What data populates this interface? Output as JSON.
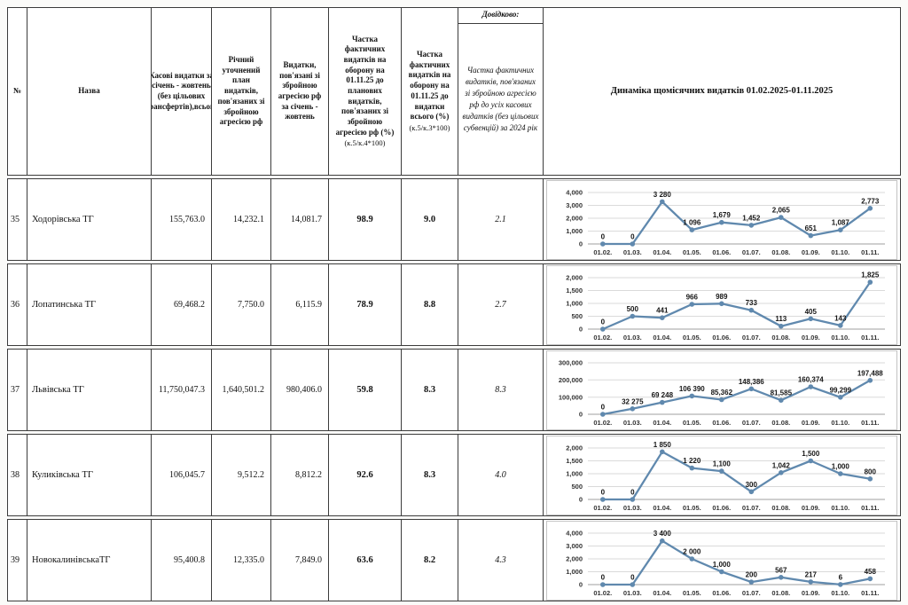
{
  "colors": {
    "line": "#6089ae",
    "grid": "#dadada",
    "zero_axis": "#9f9f9f",
    "border": "#3c3c3c"
  },
  "table": {
    "columns": [
      {
        "label": "№"
      },
      {
        "label": "Назва"
      },
      {
        "label": "Касові видатки за січень - жовтень (без цільових трансфертів),всього"
      },
      {
        "label": "Річний уточнений план видатків, пов'язаних зі збройною агресією рф"
      },
      {
        "label": "Видатки, пов'язані зі збройною агресією рф за січень - жовтень"
      },
      {
        "label": "Частка фактичних видатків на оборону на 01.11.25 до планових видатків, пов'язаних зі збройною агресією рф (%)",
        "formula": "(к.5/к.4*100)"
      },
      {
        "label": "Частка фактичних видатків на оборону на 01.11.25 до видатки всього (%)",
        "formula": "(к.5/к.3*100)"
      },
      {
        "note": "Довідково:",
        "label": "Частка фактичних видатків, пов'язаних зі збройною агресією рф до усіх касових видатків (без цільових субвенцій) за 2024 рік"
      },
      {
        "label": "Динаміка щомісячних видатків 01.02.2025-01.11.2025"
      }
    ],
    "rows": [
      {
        "num": "35",
        "name": "Ходорівська ТГ",
        "cash": "155,763.0",
        "plan": "14,232.1",
        "spent": "14,081.7",
        "share_plan": "98.9",
        "share_total": "9.0",
        "ref": "2.1",
        "chart": {
          "type": "line",
          "x": [
            "01.02.",
            "01.03.",
            "01.04.",
            "01.05.",
            "01.06.",
            "01.07.",
            "01.08.",
            "01.09.",
            "01.10.",
            "01.11."
          ],
          "values": [
            0,
            0,
            3280,
            1096,
            1679,
            1452,
            2065,
            651,
            1087,
            2773
          ],
          "labels": [
            "0",
            "0",
            "3 280",
            "1 096",
            "1,679",
            "1,452",
            "2,065",
            "651",
            "1,087",
            "2,773"
          ],
          "y_max": 4000,
          "y_ticks": [
            0,
            1000,
            2000,
            3000,
            4000
          ],
          "y_tick_labels": [
            "0",
            "1,000",
            "2,000",
            "3,000",
            "4,000"
          ]
        }
      },
      {
        "num": "36",
        "name": "Лопатинська ТГ",
        "cash": "69,468.2",
        "plan": "7,750.0",
        "spent": "6,115.9",
        "share_plan": "78.9",
        "share_total": "8.8",
        "ref": "2.7",
        "chart": {
          "type": "line",
          "x": [
            "01.02.",
            "01.03.",
            "01.04.",
            "01.05.",
            "01.06.",
            "01.07.",
            "01.08.",
            "01.09.",
            "01.10.",
            "01.11."
          ],
          "values": [
            0,
            500,
            441,
            966,
            989,
            733,
            113,
            405,
            143,
            1825
          ],
          "labels": [
            "0",
            "500",
            "441",
            "966",
            "989",
            "733",
            "113",
            "405",
            "143",
            "1,825"
          ],
          "y_max": 2000,
          "y_ticks": [
            0,
            500,
            1000,
            1500,
            2000
          ],
          "y_tick_labels": [
            "0",
            "500",
            "1,000",
            "1,500",
            "2,000"
          ]
        }
      },
      {
        "num": "37",
        "name": "Львівська ТГ",
        "cash": "11,750,047.3",
        "plan": "1,640,501.2",
        "spent": "980,406.0",
        "share_plan": "59.8",
        "share_total": "8.3",
        "ref": "8.3",
        "chart": {
          "type": "line",
          "x": [
            "01.02.",
            "01.03.",
            "01.04.",
            "01.05.",
            "01.06.",
            "01.07.",
            "01.08.",
            "01.09.",
            "01.10.",
            "01.11."
          ],
          "values": [
            0,
            32275,
            69248,
            106390,
            85362,
            148386,
            81585,
            160374,
            99299,
            197488
          ],
          "labels": [
            "0",
            "32 275",
            "69 248",
            "106 390",
            "85,362",
            "148,386",
            "81,585",
            "160,374",
            "99,299",
            "197,488"
          ],
          "y_max": 300000,
          "y_ticks": [
            0,
            100000,
            200000,
            300000
          ],
          "y_tick_labels": [
            "0",
            "100,000",
            "200,000",
            "300,000"
          ]
        }
      },
      {
        "num": "38",
        "name": "Куликівська ТГ",
        "cash": "106,045.7",
        "plan": "9,512.2",
        "spent": "8,812.2",
        "share_plan": "92.6",
        "share_total": "8.3",
        "ref": "4.0",
        "chart": {
          "type": "line",
          "x": [
            "01.02.",
            "01.03.",
            "01.04.",
            "01.05.",
            "01.06.",
            "01.07.",
            "01.08.",
            "01.09.",
            "01.10.",
            "01.11."
          ],
          "values": [
            0,
            0,
            1850,
            1220,
            1100,
            300,
            1042,
            1500,
            1000,
            800
          ],
          "labels": [
            "0",
            "0",
            "1 850",
            "1 220",
            "1,100",
            "300",
            "1,042",
            "1,500",
            "1,000",
            "800"
          ],
          "y_max": 2000,
          "y_ticks": [
            0,
            500,
            1000,
            1500,
            2000
          ],
          "y_tick_labels": [
            "0",
            "500",
            "1,000",
            "1,500",
            "2,000"
          ]
        }
      },
      {
        "num": "39",
        "name": "НовокалинівськаТГ",
        "cash": "95,400.8",
        "plan": "12,335.0",
        "spent": "7,849.0",
        "share_plan": "63.6",
        "share_total": "8.2",
        "ref": "4.3",
        "chart": {
          "type": "line",
          "x": [
            "01.02.",
            "01.03.",
            "01.04.",
            "01.05.",
            "01.06.",
            "01.07.",
            "01.08.",
            "01.09.",
            "01.10.",
            "01.11."
          ],
          "values": [
            0,
            0,
            3400,
            2000,
            1000,
            200,
            567,
            217,
            6,
            458
          ],
          "labels": [
            "0",
            "0",
            "3 400",
            "2 000",
            "1,000",
            "200",
            "567",
            "217",
            "6",
            "458"
          ],
          "y_max": 4000,
          "y_ticks": [
            0,
            1000,
            2000,
            3000,
            4000
          ],
          "y_tick_labels": [
            "0",
            "1,000",
            "2,000",
            "3,000",
            "4,000"
          ]
        }
      }
    ]
  }
}
